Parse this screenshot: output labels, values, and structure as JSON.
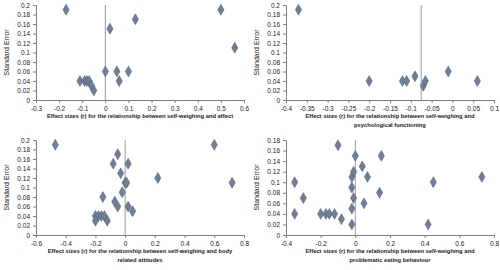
{
  "chart_data": [
    {
      "type": "scatter",
      "xlabel": [
        "Effect sizes (r) for the relationship between self-weighing and affect"
      ],
      "ylabel": "Standard Error",
      "x": [
        -0.17,
        0.5,
        0.13,
        0.02,
        0.56,
        -0.11,
        -0.09,
        -0.08,
        -0.07,
        -0.06,
        -0.05,
        0.0,
        0.05,
        0.1,
        0.06
      ],
      "y": [
        0.19,
        0.19,
        0.17,
        0.15,
        0.11,
        0.04,
        0.04,
        0.04,
        0.04,
        0.03,
        0.02,
        0.06,
        0.06,
        0.06,
        0.04
      ],
      "xlim": [
        -0.3,
        0.6
      ],
      "ylim": [
        0,
        0.2
      ],
      "xticks": [
        -0.3,
        -0.2,
        -0.1,
        0,
        0.1,
        0.2,
        0.3,
        0.4,
        0.5,
        0.6
      ],
      "yticks": [
        0,
        0.02,
        0.04,
        0.06,
        0.08,
        0.1,
        0.12,
        0.14,
        0.16,
        0.18,
        0.2
      ],
      "reference_line": 0.0,
      "color": "#6f7f95",
      "marker": "diamond"
    },
    {
      "type": "scatter",
      "xlabel": [
        "Effect sizes (r) for the relationship between self-weighing and",
        "psychological functioning"
      ],
      "ylabel": "Standard Error",
      "x": [
        -0.37,
        -0.2,
        -0.12,
        -0.11,
        -0.09,
        -0.07,
        -0.065,
        -0.01,
        0.06
      ],
      "y": [
        0.19,
        0.04,
        0.04,
        0.04,
        0.05,
        0.03,
        0.04,
        0.06,
        0.04
      ],
      "xlim": [
        -0.4,
        0.1
      ],
      "ylim": [
        0,
        0.2
      ],
      "xticks": [
        -0.4,
        -0.35,
        -0.3,
        -0.25,
        -0.2,
        -0.15,
        -0.1,
        -0.05,
        0,
        0.05,
        0.1
      ],
      "yticks": [
        0,
        0.02,
        0.04,
        0.06,
        0.08,
        0.1,
        0.12,
        0.14,
        0.16,
        0.18,
        0.2
      ],
      "reference_line": -0.075,
      "color": "#6f7f95",
      "marker": "diamond"
    },
    {
      "type": "scatter",
      "xlabel": [
        "Effect sizes (r) for the relationship between self-weighing and  body",
        "related attitudes"
      ],
      "ylabel": "Standard Error",
      "x": [
        -0.47,
        0.6,
        -0.05,
        0.02,
        -0.08,
        -0.03,
        0.22,
        0.72,
        0.0,
        0.01,
        -0.02,
        -0.15,
        -0.07,
        -0.2,
        -0.18,
        -0.16,
        -0.14,
        -0.12,
        -0.2,
        0.02,
        -0.05,
        0.05
      ],
      "y": [
        0.19,
        0.19,
        0.17,
        0.15,
        0.15,
        0.13,
        0.12,
        0.11,
        0.11,
        0.11,
        0.09,
        0.08,
        0.07,
        0.04,
        0.04,
        0.04,
        0.04,
        0.03,
        0.03,
        0.06,
        0.06,
        0.05
      ],
      "xlim": [
        -0.6,
        0.8
      ],
      "ylim": [
        0,
        0.2
      ],
      "xticks": [
        -0.6,
        -0.4,
        -0.2,
        0,
        0.2,
        0.4,
        0.6,
        0.8
      ],
      "yticks": [
        0,
        0.02,
        0.04,
        0.06,
        0.08,
        0.1,
        0.12,
        0.14,
        0.16,
        0.18,
        0.2
      ],
      "reference_line": 0.0,
      "color": "#6f7f95",
      "marker": "diamond"
    },
    {
      "type": "scatter",
      "xlabel": [
        "Effect sizes (r) for the relationship between self-weighing and",
        "problematic eating behaviour"
      ],
      "ylabel": "Standard Error",
      "x": [
        -0.1,
        0.0,
        0.15,
        -0.35,
        0.04,
        0.07,
        -0.3,
        -0.02,
        0.45,
        0.73,
        -0.02,
        0.14,
        0.05,
        -0.01,
        -0.02,
        -0.35,
        -0.2,
        -0.17,
        -0.15,
        -0.12,
        -0.08,
        -0.02,
        0.42,
        -0.01
      ],
      "y": [
        0.17,
        0.15,
        0.15,
        0.1,
        0.13,
        0.11,
        0.07,
        0.11,
        0.1,
        0.11,
        0.09,
        0.08,
        0.06,
        0.07,
        0.05,
        0.04,
        0.04,
        0.04,
        0.04,
        0.04,
        0.03,
        0.02,
        0.02,
        0.12
      ],
      "xlim": [
        -0.4,
        0.8
      ],
      "ylim": [
        0,
        0.18
      ],
      "xticks": [
        -0.4,
        -0.2,
        0,
        0.2,
        0.4,
        0.6,
        0.8
      ],
      "yticks": [
        0,
        0.02,
        0.04,
        0.06,
        0.08,
        0.1,
        0.12,
        0.14,
        0.16,
        0.18
      ],
      "reference_line": 0.0,
      "color": "#6f7f95",
      "marker": "diamond"
    }
  ]
}
